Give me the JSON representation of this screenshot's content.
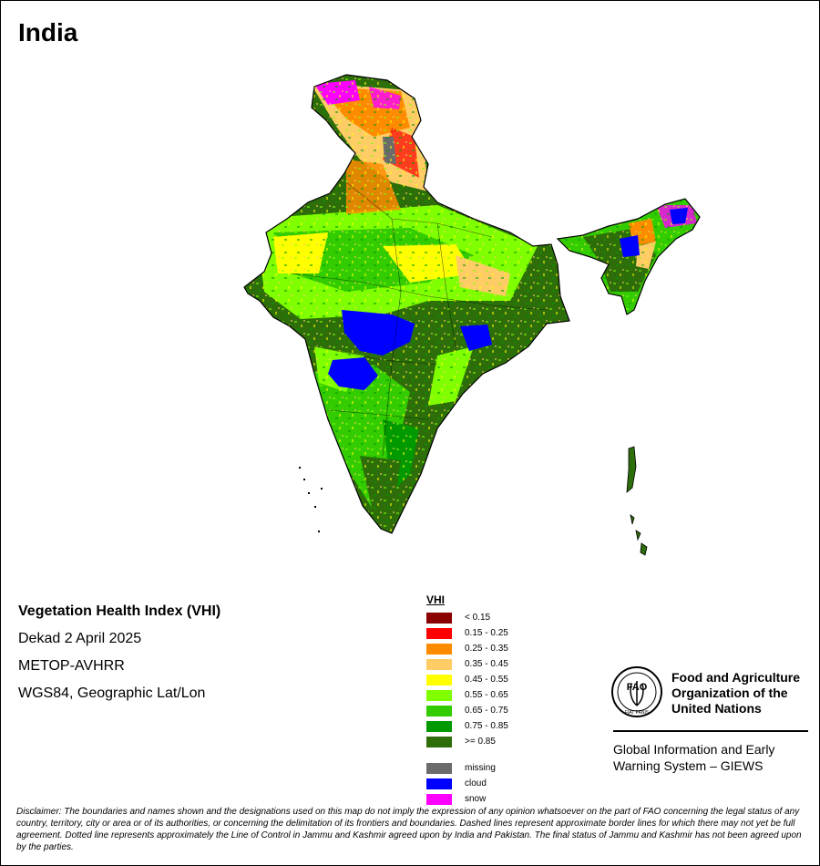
{
  "title": "India",
  "info": {
    "product": "Vegetation Health Index (VHI)",
    "period": "Dekad 2 April 2025",
    "sensor": "METOP-AVHRR",
    "projection": "WGS84, Geographic Lat/Lon"
  },
  "legend": {
    "title": "VHI",
    "classes": [
      {
        "label": "< 0.15",
        "color": "#8b0000"
      },
      {
        "label": "0.15 - 0.25",
        "color": "#ff0000"
      },
      {
        "label": "0.25 - 0.35",
        "color": "#ff8c00"
      },
      {
        "label": "0.35 - 0.45",
        "color": "#ffcc66"
      },
      {
        "label": "0.45 - 0.55",
        "color": "#ffff00"
      },
      {
        "label": "0.55 - 0.65",
        "color": "#80ff00"
      },
      {
        "label": "0.65 - 0.75",
        "color": "#33cc00"
      },
      {
        "label": "0.75 - 0.85",
        "color": "#009900"
      },
      {
        "label": ">= 0.85",
        "color": "#2d6e0a"
      }
    ],
    "special": [
      {
        "label": "missing",
        "color": "#6b6b6b"
      },
      {
        "label": "cloud",
        "color": "#0000ff"
      },
      {
        "label": "snow",
        "color": "#ff00ff"
      }
    ]
  },
  "organization": {
    "name_lines": [
      "Food and Agriculture",
      "Organization of the",
      "United Nations"
    ],
    "logo_text": "FAO",
    "logo_motto": "FIAT PANIS",
    "system_lines": [
      "Global Information and Early",
      "Warning System – GIEWS"
    ]
  },
  "disclaimer": "Disclaimer: The boundaries and names shown and the designations used on this map do not imply the expression of any opinion whatsoever on the part of FAO concerning the legal status of any country, territory, city or area or of its authorities, or concerning the delimitation of its frontiers and boundaries. Dashed lines represent approximate border lines for which there may not yet be full agreement. Dotted line represents approximately the Line of Control in Jammu and Kashmir agreed upon by India and Pakistan. The final status of Jammu and Kashmir has not been agreed upon by the parties."
}
